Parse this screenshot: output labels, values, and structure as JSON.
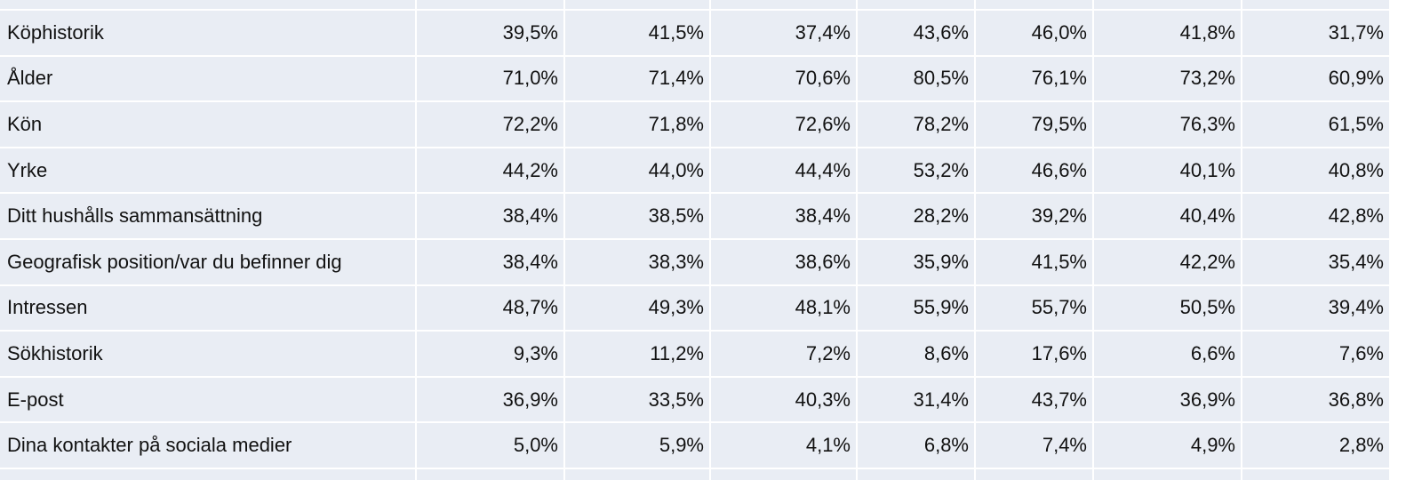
{
  "table": {
    "rows": [
      [
        "Köphistorik",
        "39,5%",
        "41,5%",
        "37,4%",
        "43,6%",
        "46,0%",
        "41,8%",
        "31,7%"
      ],
      [
        "Ålder",
        "71,0%",
        "71,4%",
        "70,6%",
        "80,5%",
        "76,1%",
        "73,2%",
        "60,9%"
      ],
      [
        "Kön",
        "72,2%",
        "71,8%",
        "72,6%",
        "78,2%",
        "79,5%",
        "76,3%",
        "61,5%"
      ],
      [
        "Yrke",
        "44,2%",
        "44,0%",
        "44,4%",
        "53,2%",
        "46,6%",
        "40,1%",
        "40,8%"
      ],
      [
        "Ditt hushålls sammansättning",
        "38,4%",
        "38,5%",
        "38,4%",
        "28,2%",
        "39,2%",
        "40,4%",
        "42,8%"
      ],
      [
        "Geografisk position/var du befinner dig",
        "38,4%",
        "38,3%",
        "38,6%",
        "35,9%",
        "41,5%",
        "42,2%",
        "35,4%"
      ],
      [
        "Intressen",
        "48,7%",
        "49,3%",
        "48,1%",
        "55,9%",
        "55,7%",
        "50,5%",
        "39,4%"
      ],
      [
        "Sökhistorik",
        "9,3%",
        "11,2%",
        "7,2%",
        "8,6%",
        "17,6%",
        "6,6%",
        "7,6%"
      ],
      [
        "E-post",
        "36,9%",
        "33,5%",
        "40,3%",
        "31,4%",
        "43,7%",
        "36,9%",
        "36,8%"
      ],
      [
        "Dina kontakter på sociala medier",
        "5,0%",
        "5,9%",
        "4,1%",
        "6,8%",
        "7,4%",
        "4,9%",
        "2,8%"
      ]
    ]
  }
}
